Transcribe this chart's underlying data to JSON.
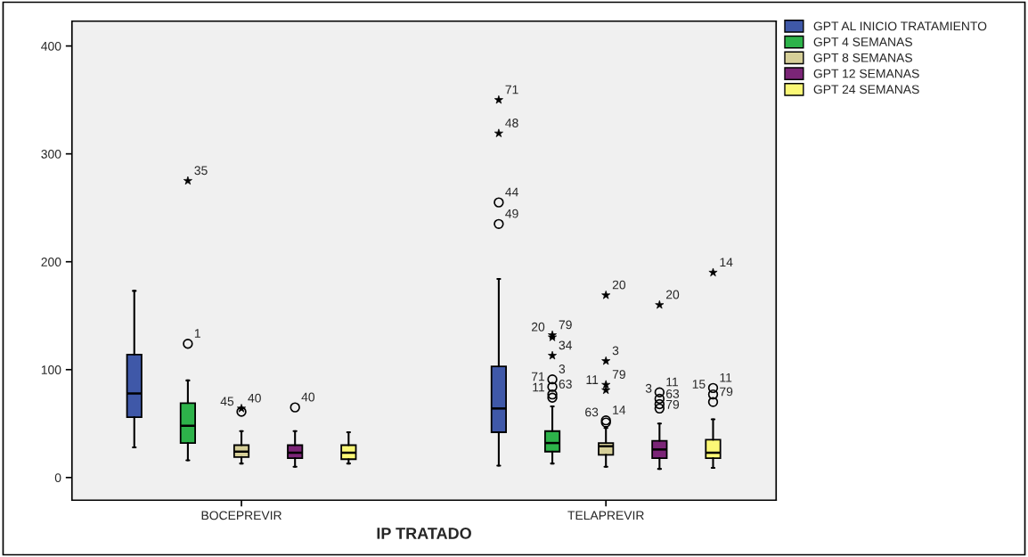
{
  "chart_data": {
    "type": "box",
    "xlabel": "IP TRATADO",
    "categories": [
      "BOCEPREVIR",
      "TELAPREVIR"
    ],
    "ylim": [
      -21,
      423
    ],
    "yticks": [
      0,
      100,
      200,
      300,
      400
    ],
    "grid": false,
    "legend": "top right",
    "series": [
      {
        "name": "GPT AL INICIO TRATAMIENTO",
        "color": "#3f58a8",
        "boxes": [
          {
            "low": 28,
            "q1": 56,
            "median": 78,
            "q3": 114,
            "high": 173
          },
          {
            "low": 11,
            "q1": 42,
            "median": 64,
            "q3": 103,
            "high": 184,
            "outliers": [
              350,
              319,
              255,
              235
            ]
          }
        ]
      },
      {
        "name": "GPT 4 SEMANAS",
        "color": "#2db34a",
        "boxes": [
          {
            "low": 16,
            "q1": 32,
            "median": 48,
            "q3": 69,
            "high": 90,
            "outliers": [
              275,
              124
            ]
          },
          {
            "low": 13,
            "q1": 24,
            "median": 32,
            "q3": 43,
            "high": 66,
            "outliers": [
              132,
              130,
              113,
              91,
              84,
              77,
              74
            ]
          }
        ]
      },
      {
        "name": "GPT 8 SEMANAS",
        "color": "#d6cf98",
        "boxes": [
          {
            "low": 13,
            "q1": 19,
            "median": 24,
            "q3": 30,
            "high": 43,
            "outliers": [
              64,
              61
            ]
          },
          {
            "low": 10,
            "q1": 21,
            "median": 29,
            "q3": 32,
            "high": 46,
            "outliers": [
              169,
              108,
              86,
              81,
              53,
              51
            ]
          }
        ]
      },
      {
        "name": "GPT 12 SEMANAS",
        "color": "#7b2577",
        "boxes": [
          {
            "low": 10,
            "q1": 18,
            "median": 23,
            "q3": 30,
            "high": 43,
            "outliers": [
              65
            ]
          },
          {
            "low": 8,
            "q1": 18,
            "median": 26,
            "q3": 34,
            "high": 50,
            "outliers": [
              160,
              79,
              73,
              68,
              64
            ]
          }
        ]
      },
      {
        "name": "GPT 24 SEMANAS",
        "color": "#fbf876",
        "boxes": [
          {
            "low": 13,
            "q1": 17,
            "median": 23,
            "q3": 30,
            "high": 42
          },
          {
            "low": 9,
            "q1": 18,
            "median": 23,
            "q3": 35,
            "high": 54,
            "outliers": [
              190,
              83,
              77,
              70
            ]
          }
        ]
      }
    ],
    "annotations": [
      "71",
      "48",
      "44",
      "49",
      "35",
      "1",
      "79",
      "20",
      "34",
      "3",
      "71",
      "63",
      "11",
      "40",
      "45",
      "20",
      "3",
      "79",
      "11",
      "14",
      "63",
      "40",
      "20",
      "11",
      "3",
      "63",
      "79",
      "14",
      "11",
      "15",
      "79"
    ]
  }
}
